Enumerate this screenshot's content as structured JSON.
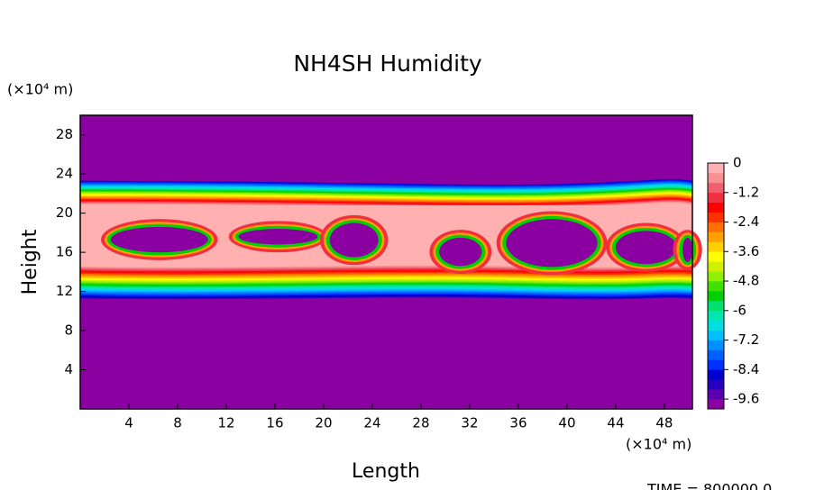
{
  "chart_data": {
    "type": "contour",
    "title": "NH4SH Humidity",
    "xlabel": "Length",
    "ylabel": "Height",
    "x_unit": "(×10⁴ m)",
    "y_unit": "(×10⁴ m)",
    "xlim": [
      0,
      50.3
    ],
    "ylim": [
      0,
      30
    ],
    "xticks": [
      4,
      8,
      12,
      16,
      20,
      24,
      28,
      32,
      36,
      40,
      44,
      48
    ],
    "yticks": [
      4,
      8,
      12,
      16,
      20,
      24,
      28
    ],
    "colorbar": {
      "lim": [
        -10,
        0
      ],
      "ticks": [
        0,
        -1.2,
        -2.4,
        -3.6,
        -4.8,
        -6,
        -7.2,
        -8.4,
        -9.6
      ],
      "colors": [
        "#8b00a0",
        "#5a00b0",
        "#2800c0",
        "#0000d0",
        "#0030ff",
        "#0060ff",
        "#0090ff",
        "#00c0ff",
        "#00e0e0",
        "#00e8b0",
        "#00e070",
        "#00d000",
        "#40e000",
        "#90f000",
        "#d0f000",
        "#ffff00",
        "#ffd000",
        "#ffa000",
        "#ff7000",
        "#ff3000",
        "#ff0000",
        "#f03040",
        "#f06070",
        "#f89090",
        "#ffb0b0"
      ]
    },
    "annotation": "TIME = 800000.0"
  }
}
